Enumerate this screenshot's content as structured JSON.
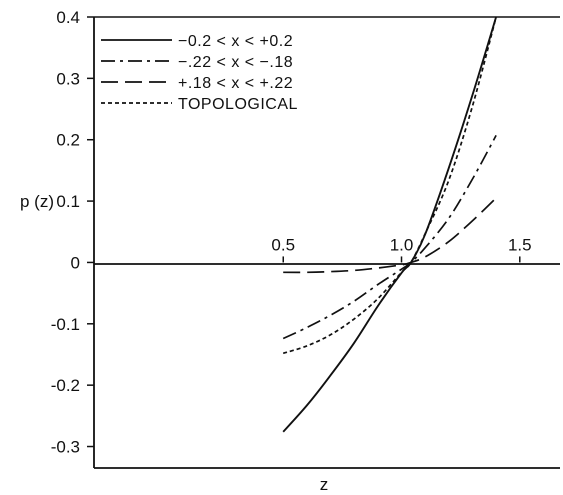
{
  "chart_data": {
    "type": "line",
    "xlabel": "z",
    "ylabel": "p (z)",
    "xlim": [
      -0.3,
      1.67
    ],
    "ylim": [
      -0.335,
      0.4
    ],
    "x_ticks": [
      {
        "value": 0.5,
        "label": "0.5"
      },
      {
        "value": 1.0,
        "label": "1.0"
      },
      {
        "value": 1.5,
        "label": "1.5"
      }
    ],
    "y_ticks": [
      {
        "value": 0.4,
        "label": "0.4"
      },
      {
        "value": 0.3,
        "label": "0.3"
      },
      {
        "value": 0.2,
        "label": "0.2"
      },
      {
        "value": 0.1,
        "label": "0.1"
      },
      {
        "value": 0.0,
        "label": "0"
      },
      {
        "value": -0.1,
        "label": "-0.1"
      },
      {
        "value": -0.2,
        "label": "-0.2"
      },
      {
        "value": -0.3,
        "label": "-0.3"
      }
    ],
    "legend_position": "top-left",
    "series": [
      {
        "name": "−0.2 < x < +0.2",
        "style": "solid",
        "x": [
          0.5,
          0.6,
          0.7,
          0.8,
          0.9,
          1.0,
          1.04,
          1.1,
          1.2,
          1.3,
          1.4
        ],
        "y": [
          -0.276,
          -0.233,
          -0.184,
          -0.131,
          -0.071,
          -0.017,
          0.0,
          0.046,
          0.154,
          0.273,
          0.4
        ]
      },
      {
        "name": "−.22 < x < −.18",
        "style": "dash-dot",
        "x": [
          0.5,
          0.6,
          0.7,
          0.8,
          0.9,
          1.0,
          1.04,
          1.1,
          1.2,
          1.3,
          1.4
        ],
        "y": [
          -0.124,
          -0.106,
          -0.086,
          -0.063,
          -0.036,
          -0.011,
          0.0,
          0.024,
          0.072,
          0.136,
          0.207
        ]
      },
      {
        "name": "+.18 < x < +.22",
        "style": "long-dash",
        "x": [
          0.5,
          0.6,
          0.7,
          0.8,
          0.9,
          1.0,
          1.04,
          1.1,
          1.2,
          1.3,
          1.4
        ],
        "y": [
          -0.016,
          -0.016,
          -0.015,
          -0.013,
          -0.009,
          -0.004,
          0.0,
          0.009,
          0.034,
          0.068,
          0.105
        ]
      },
      {
        "name": "TOPOLOGICAL",
        "style": "short-dash",
        "x": [
          0.5,
          0.6,
          0.7,
          0.8,
          0.9,
          1.0,
          1.04,
          1.1,
          1.2,
          1.3,
          1.4
        ],
        "y": [
          -0.148,
          -0.136,
          -0.118,
          -0.092,
          -0.059,
          -0.016,
          0.0,
          0.047,
          0.134,
          0.255,
          0.4
        ]
      }
    ]
  }
}
